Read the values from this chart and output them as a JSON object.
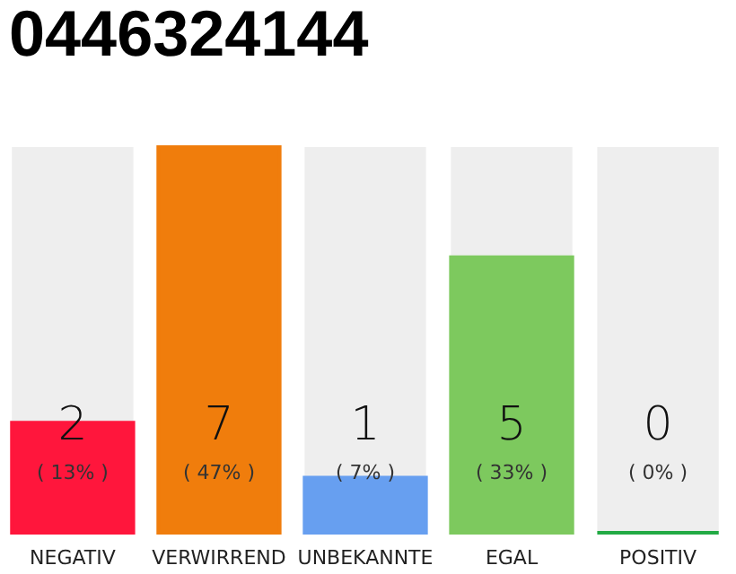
{
  "chart_data": {
    "type": "bar",
    "title": "0446324144",
    "categories": [
      "NEGATIV",
      "VERWIRREND",
      "UNBEKANNTE",
      "EGAL",
      "POSITIV"
    ],
    "values": [
      2,
      7,
      1,
      5,
      0
    ],
    "colors": [
      "#ff163c",
      "#f07d0c",
      "#679ff0",
      "#7dc95e",
      "#22aa44"
    ],
    "ylim": [
      0,
      7
    ],
    "data_labels": true,
    "annotations": [
      "( 13% )",
      "( 47% )",
      "( 7% )",
      "( 33% )",
      "( 0% )"
    ],
    "tick_labels": "x"
  }
}
